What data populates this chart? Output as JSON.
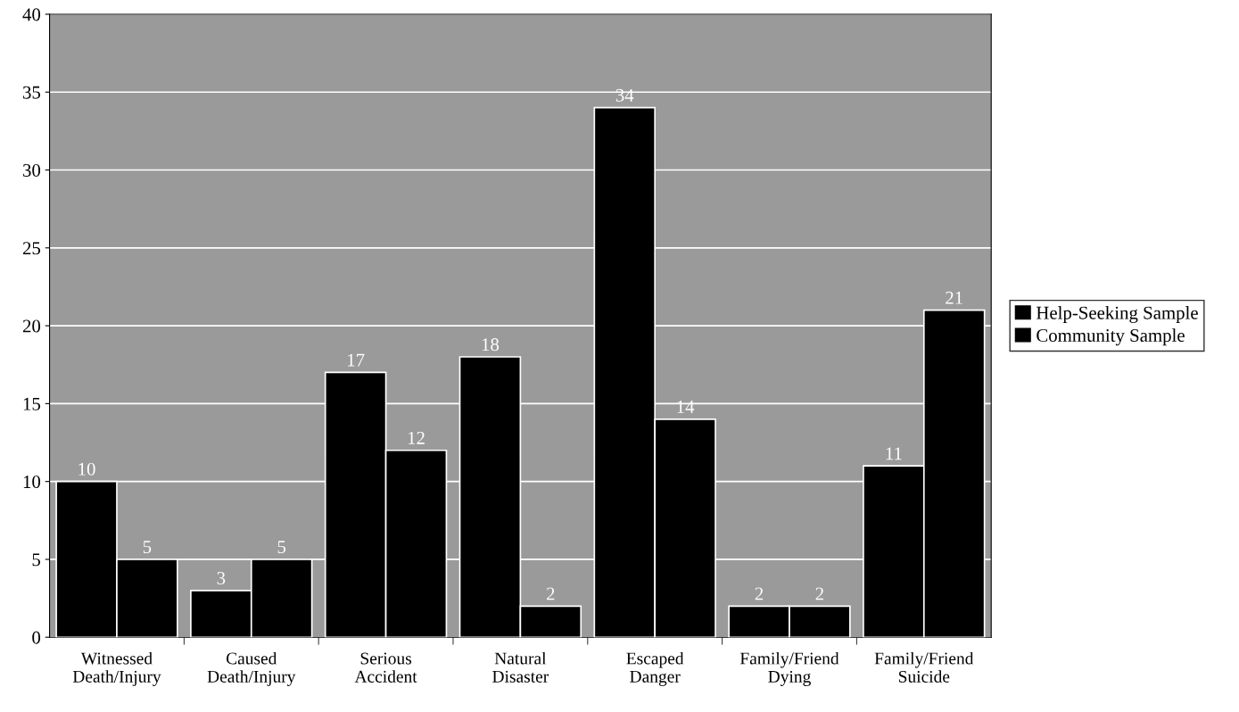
{
  "chart_data": {
    "type": "bar",
    "categories": [
      "Witnessed\nDeath/Injury",
      "Caused\nDeath/Injury",
      "Serious\nAccident",
      "Natural\nDisaster",
      "Escaped\nDanger",
      "Family/Friend\nDying",
      "Family/Friend\nSuicide"
    ],
    "series": [
      {
        "name": "Help-Seeking Sample",
        "color": "#000000",
        "values": [
          10,
          3,
          17,
          18,
          34,
          2,
          11
        ]
      },
      {
        "name": "Community Sample",
        "color": "#000000",
        "values": [
          5,
          5,
          12,
          2,
          14,
          2,
          21
        ]
      }
    ],
    "ylim": [
      0,
      40
    ],
    "yticks": [
      0,
      5,
      10,
      15,
      20,
      25,
      30,
      35,
      40
    ],
    "grid": "y",
    "legend": "right",
    "data_labels": true
  }
}
